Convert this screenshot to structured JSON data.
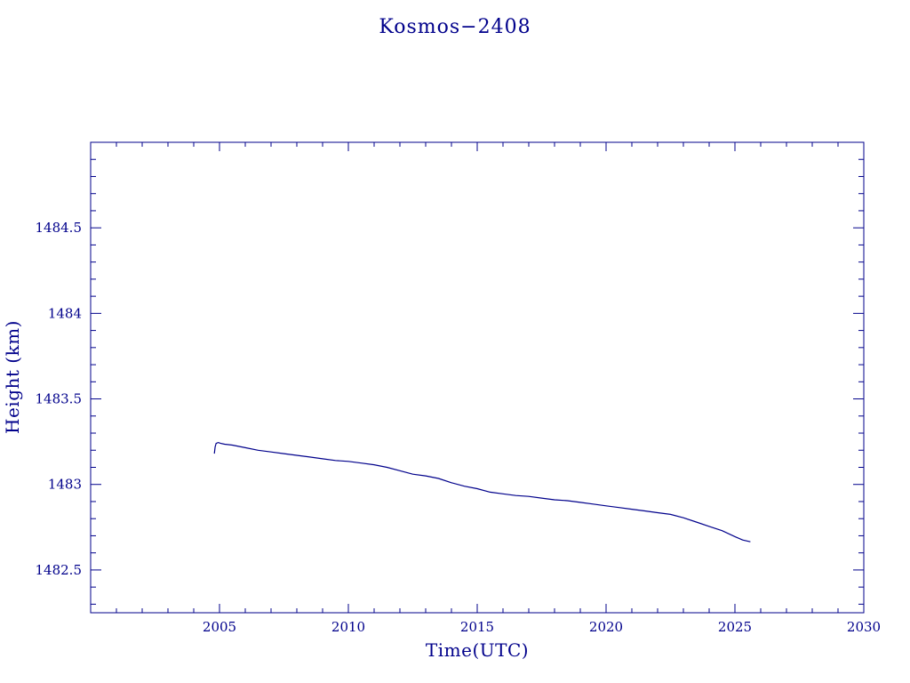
{
  "chart_data": {
    "type": "line",
    "title": "Kosmos−2408",
    "xlabel": "Time(UTC)",
    "ylabel": "Height (km)",
    "xlim": [
      2000,
      2030
    ],
    "ylim": [
      1482.25,
      1485.0
    ],
    "x_ticks": [
      2005,
      2010,
      2015,
      2020,
      2025,
      2030
    ],
    "x_tick_labels": [
      "2005",
      "2010",
      "2015",
      "2020",
      "2025",
      "2030"
    ],
    "y_ticks": [
      1482.5,
      1483,
      1483.5,
      1484,
      1484.5
    ],
    "y_tick_labels": [
      "1482.5",
      "1483",
      "1483.5",
      "1484",
      "1484.5"
    ],
    "grid": false,
    "colors": {
      "axis": "#00008b",
      "line": "#00008b",
      "background": "#ffffff"
    },
    "series": [
      {
        "x": [
          2004.8,
          2004.83,
          2004.87,
          2004.95,
          2005.05,
          2005.2,
          2005.5,
          2006,
          2006.5,
          2007,
          2007.5,
          2008,
          2008.5,
          2009,
          2009.5,
          2010,
          2010.5,
          2011,
          2011.5,
          2012,
          2012.5,
          2013,
          2013.5,
          2014,
          2014.5,
          2015,
          2015.5,
          2016,
          2016.5,
          2017,
          2017.5,
          2018,
          2018.5,
          2019,
          2019.5,
          2020,
          2020.5,
          2021,
          2021.5,
          2022,
          2022.5,
          2023,
          2023.5,
          2024,
          2024.5,
          2025,
          2025.3,
          2025.6
        ],
        "y": [
          1483.18,
          1483.22,
          1483.24,
          1483.245,
          1483.24,
          1483.235,
          1483.23,
          1483.215,
          1483.2,
          1483.19,
          1483.18,
          1483.17,
          1483.16,
          1483.15,
          1483.14,
          1483.135,
          1483.125,
          1483.115,
          1483.1,
          1483.08,
          1483.06,
          1483.05,
          1483.035,
          1483.01,
          1482.99,
          1482.975,
          1482.955,
          1482.945,
          1482.935,
          1482.93,
          1482.92,
          1482.91,
          1482.905,
          1482.895,
          1482.885,
          1482.875,
          1482.865,
          1482.855,
          1482.845,
          1482.835,
          1482.825,
          1482.805,
          1482.78,
          1482.755,
          1482.73,
          1482.695,
          1482.675,
          1482.665
        ]
      }
    ]
  }
}
